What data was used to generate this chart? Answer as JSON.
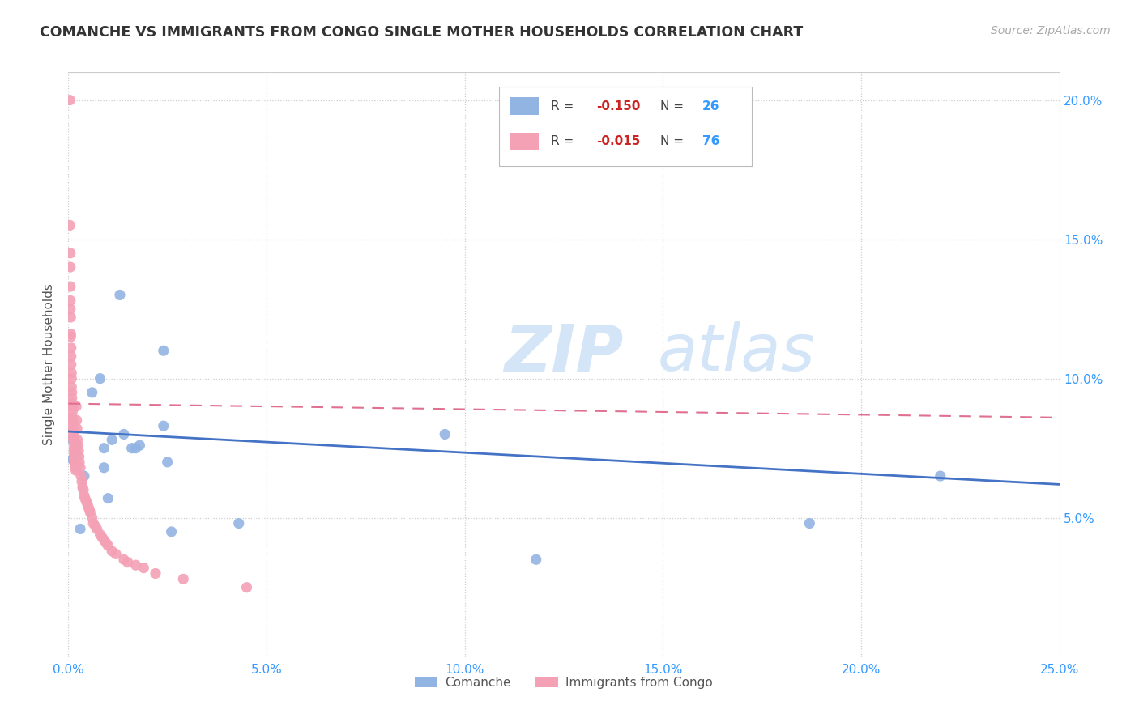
{
  "title": "COMANCHE VS IMMIGRANTS FROM CONGO SINGLE MOTHER HOUSEHOLDS CORRELATION CHART",
  "source": "Source: ZipAtlas.com",
  "ylabel": "Single Mother Households",
  "xlim": [
    0,
    0.25
  ],
  "ylim": [
    0,
    0.21
  ],
  "xticks": [
    0.0,
    0.05,
    0.1,
    0.15,
    0.2,
    0.25
  ],
  "yticks_left": [
    0.05,
    0.1,
    0.15,
    0.2
  ],
  "yticks_right": [
    0.05,
    0.1,
    0.15,
    0.2
  ],
  "ytick_labels_right": [
    "5.0%",
    "10.0%",
    "15.0%",
    "20.0%"
  ],
  "xtick_labels": [
    "0.0%",
    "5.0%",
    "10.0%",
    "15.0%",
    "20.0%",
    "25.0%"
  ],
  "blue_color": "#92b4e3",
  "pink_color": "#f4a0b5",
  "blue_line_color": "#4472c4",
  "pink_line_color": "#e07090",
  "watermark_zip": "ZIP",
  "watermark_atlas": "atlas",
  "comanche_x": [
    0.001,
    0.001,
    0.002,
    0.002,
    0.003,
    0.004,
    0.006,
    0.008,
    0.009,
    0.009,
    0.01,
    0.011,
    0.013,
    0.014,
    0.016,
    0.017,
    0.018,
    0.024,
    0.024,
    0.025,
    0.026,
    0.043,
    0.095,
    0.118,
    0.187,
    0.22
  ],
  "comanche_y": [
    0.071,
    0.078,
    0.073,
    0.076,
    0.046,
    0.065,
    0.095,
    0.1,
    0.075,
    0.068,
    0.057,
    0.078,
    0.13,
    0.08,
    0.075,
    0.075,
    0.076,
    0.11,
    0.083,
    0.07,
    0.045,
    0.048,
    0.08,
    0.035,
    0.048,
    0.065
  ],
  "congo_x": [
    0.0004,
    0.0004,
    0.0005,
    0.0005,
    0.0005,
    0.0005,
    0.0005,
    0.0006,
    0.0006,
    0.0006,
    0.0007,
    0.0007,
    0.0007,
    0.0008,
    0.0008,
    0.0008,
    0.0009,
    0.0009,
    0.001,
    0.001,
    0.001,
    0.001,
    0.0011,
    0.0011,
    0.0012,
    0.0012,
    0.0013,
    0.0013,
    0.0014,
    0.0014,
    0.0015,
    0.0015,
    0.0016,
    0.0016,
    0.0017,
    0.0017,
    0.0018,
    0.0019,
    0.002,
    0.0021,
    0.0022,
    0.0023,
    0.0025,
    0.0026,
    0.0027,
    0.0028,
    0.003,
    0.0032,
    0.0034,
    0.0036,
    0.0038,
    0.004,
    0.0042,
    0.0045,
    0.0048,
    0.005,
    0.0053,
    0.0055,
    0.006,
    0.0063,
    0.0068,
    0.0072,
    0.008,
    0.0085,
    0.009,
    0.0095,
    0.01,
    0.011,
    0.012,
    0.014,
    0.015,
    0.017,
    0.019,
    0.022,
    0.029,
    0.045
  ],
  "congo_y": [
    0.2,
    0.155,
    0.145,
    0.14,
    0.133,
    0.128,
    0.125,
    0.122,
    0.116,
    0.115,
    0.111,
    0.108,
    0.105,
    0.102,
    0.1,
    0.097,
    0.095,
    0.093,
    0.091,
    0.09,
    0.088,
    0.086,
    0.085,
    0.083,
    0.082,
    0.08,
    0.079,
    0.078,
    0.077,
    0.075,
    0.074,
    0.073,
    0.072,
    0.071,
    0.07,
    0.069,
    0.068,
    0.067,
    0.09,
    0.085,
    0.082,
    0.078,
    0.076,
    0.074,
    0.072,
    0.07,
    0.068,
    0.065,
    0.063,
    0.061,
    0.06,
    0.058,
    0.057,
    0.056,
    0.055,
    0.054,
    0.053,
    0.052,
    0.05,
    0.048,
    0.047,
    0.046,
    0.044,
    0.043,
    0.042,
    0.041,
    0.04,
    0.038,
    0.037,
    0.035,
    0.034,
    0.033,
    0.032,
    0.03,
    0.028,
    0.025
  ]
}
